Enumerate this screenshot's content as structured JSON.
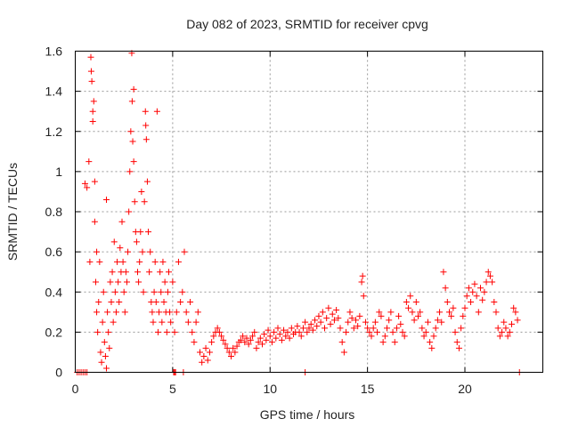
{
  "chart_data": {
    "type": "scatter",
    "title": "Day 082 of 2023, SRMTID for receiver cpvg",
    "xlabel": "GPS time / hours",
    "ylabel": "SRMTID / TECUs",
    "xlim": [
      0,
      24
    ],
    "ylim": [
      0,
      1.6
    ],
    "xticks": [
      0,
      5,
      10,
      15,
      20
    ],
    "yticks": [
      0,
      0.2,
      0.4,
      0.6,
      0.8,
      1,
      1.2,
      1.4,
      1.6
    ],
    "xtick_labels": [
      "0",
      "5",
      "10",
      "15",
      "20"
    ],
    "ytick_labels": [
      "0",
      "0.2",
      "0.4",
      "0.6",
      "0.8",
      "1",
      "1.2",
      "1.4",
      "1.6"
    ],
    "grid": true,
    "marker": "plus",
    "color": "#ff0000",
    "series": [
      {
        "name": "SRMTID",
        "points": [
          [
            0.1,
            0
          ],
          [
            0.2,
            0
          ],
          [
            0.3,
            0
          ],
          [
            0.4,
            0
          ],
          [
            0.5,
            0
          ],
          [
            0.6,
            0
          ],
          [
            0.5,
            0.94
          ],
          [
            0.6,
            0.92
          ],
          [
            0.7,
            1.05
          ],
          [
            0.75,
            0.55
          ],
          [
            0.8,
            1.57
          ],
          [
            0.82,
            1.5
          ],
          [
            0.85,
            1.45
          ],
          [
            0.9,
            1.3
          ],
          [
            0.9,
            1.25
          ],
          [
            0.95,
            1.35
          ],
          [
            1.0,
            0.95
          ],
          [
            1.0,
            0.75
          ],
          [
            1.05,
            0.45
          ],
          [
            1.1,
            0.6
          ],
          [
            1.1,
            0.3
          ],
          [
            1.15,
            0.2
          ],
          [
            1.2,
            0.35
          ],
          [
            1.25,
            0.55
          ],
          [
            1.3,
            0.1
          ],
          [
            1.35,
            0.05
          ],
          [
            1.4,
            0.25
          ],
          [
            1.45,
            0.4
          ],
          [
            1.5,
            0.15
          ],
          [
            1.55,
            0.08
          ],
          [
            1.6,
            0.86
          ],
          [
            1.6,
            0.02
          ],
          [
            1.65,
            0.3
          ],
          [
            1.7,
            0.2
          ],
          [
            1.75,
            0.12
          ],
          [
            1.8,
            0.45
          ],
          [
            1.85,
            0.35
          ],
          [
            1.9,
            0.5
          ],
          [
            1.95,
            0.25
          ],
          [
            2.0,
            0.65
          ],
          [
            2.05,
            0.4
          ],
          [
            2.1,
            0.3
          ],
          [
            2.15,
            0.55
          ],
          [
            2.2,
            0.45
          ],
          [
            2.25,
            0.35
          ],
          [
            2.3,
            0.62
          ],
          [
            2.35,
            0.5
          ],
          [
            2.4,
            0.75
          ],
          [
            2.45,
            0.55
          ],
          [
            2.5,
            0.4
          ],
          [
            2.55,
            0.3
          ],
          [
            2.6,
            0.5
          ],
          [
            2.65,
            0.45
          ],
          [
            2.7,
            0.6
          ],
          [
            2.75,
            0.8
          ],
          [
            2.8,
            1.0
          ],
          [
            2.85,
            1.2
          ],
          [
            2.9,
            1.59
          ],
          [
            2.92,
            1.35
          ],
          [
            2.95,
            1.15
          ],
          [
            3.0,
            1.41
          ],
          [
            3.0,
            1.05
          ],
          [
            3.05,
            0.85
          ],
          [
            3.1,
            0.7
          ],
          [
            3.15,
            0.65
          ],
          [
            3.2,
            0.5
          ],
          [
            3.25,
            0.45
          ],
          [
            3.3,
            0.55
          ],
          [
            3.35,
            0.7
          ],
          [
            3.4,
            0.9
          ],
          [
            3.45,
            0.6
          ],
          [
            3.5,
            0.4
          ],
          [
            3.55,
            0.85
          ],
          [
            3.6,
            1.3
          ],
          [
            3.62,
            1.23
          ],
          [
            3.65,
            1.16
          ],
          [
            3.7,
            0.95
          ],
          [
            3.75,
            0.7
          ],
          [
            3.8,
            0.5
          ],
          [
            3.85,
            0.6
          ],
          [
            3.9,
            0.35
          ],
          [
            3.95,
            0.3
          ],
          [
            4.0,
            0.25
          ],
          [
            4.05,
            0.4
          ],
          [
            4.1,
            0.55
          ],
          [
            4.15,
            0.35
          ],
          [
            4.2,
            1.3
          ],
          [
            4.25,
            0.2
          ],
          [
            4.3,
            0.3
          ],
          [
            4.35,
            0.5
          ],
          [
            4.4,
            0.4
          ],
          [
            4.45,
            0.25
          ],
          [
            4.5,
            0.55
          ],
          [
            4.55,
            0.35
          ],
          [
            4.6,
            0.45
          ],
          [
            4.65,
            0.3
          ],
          [
            4.7,
            0.2
          ],
          [
            4.75,
            0.4
          ],
          [
            4.8,
            0.5
          ],
          [
            4.85,
            0.3
          ],
          [
            4.9,
            0.25
          ],
          [
            5.0,
            0.45
          ],
          [
            5.1,
            0.2
          ],
          [
            5.2,
            0.3
          ],
          [
            5.3,
            0.55
          ],
          [
            5.4,
            0.35
          ],
          [
            5.5,
            0.4
          ],
          [
            5.6,
            0.6
          ],
          [
            5.7,
            0.3
          ],
          [
            5.8,
            0.25
          ],
          [
            5.9,
            0.35
          ],
          [
            6.0,
            0.2
          ],
          [
            6.1,
            0.15
          ],
          [
            6.2,
            0.25
          ],
          [
            6.3,
            0.3
          ],
          [
            6.4,
            0.1
          ],
          [
            6.5,
            0.05
          ],
          [
            6.6,
            0.08
          ],
          [
            6.7,
            0.12
          ],
          [
            6.8,
            0.06
          ],
          [
            6.9,
            0.1
          ],
          [
            7.0,
            0.15
          ],
          [
            7.1,
            0.18
          ],
          [
            7.2,
            0.2
          ],
          [
            7.3,
            0.22
          ],
          [
            7.4,
            0.2
          ],
          [
            7.5,
            0.18
          ],
          [
            7.6,
            0.16
          ],
          [
            7.7,
            0.14
          ],
          [
            7.8,
            0.12
          ],
          [
            7.9,
            0.1
          ],
          [
            8.0,
            0.08
          ],
          [
            8.1,
            0.12
          ],
          [
            8.2,
            0.1
          ],
          [
            8.3,
            0.13
          ],
          [
            8.4,
            0.15
          ],
          [
            8.5,
            0.16
          ],
          [
            8.6,
            0.18
          ],
          [
            8.7,
            0.15
          ],
          [
            8.8,
            0.17
          ],
          [
            8.9,
            0.14
          ],
          [
            9.0,
            0.16
          ],
          [
            9.1,
            0.18
          ],
          [
            9.2,
            0.2
          ],
          [
            9.3,
            0.12
          ],
          [
            9.4,
            0.15
          ],
          [
            9.5,
            0.17
          ],
          [
            9.6,
            0.14
          ],
          [
            9.7,
            0.19
          ],
          [
            9.8,
            0.16
          ],
          [
            9.9,
            0.21
          ],
          [
            10.0,
            0.18
          ],
          [
            10.1,
            0.15
          ],
          [
            10.2,
            0.2
          ],
          [
            10.3,
            0.17
          ],
          [
            10.4,
            0.22
          ],
          [
            10.5,
            0.19
          ],
          [
            10.6,
            0.16
          ],
          [
            10.7,
            0.21
          ],
          [
            10.8,
            0.18
          ],
          [
            10.9,
            0.2
          ],
          [
            11.0,
            0.17
          ],
          [
            11.1,
            0.22
          ],
          [
            11.2,
            0.19
          ],
          [
            11.3,
            0.2
          ],
          [
            11.4,
            0.23
          ],
          [
            11.5,
            0.2
          ],
          [
            11.6,
            0.18
          ],
          [
            11.7,
            0.22
          ],
          [
            11.8,
            0.25
          ],
          [
            11.9,
            0.2
          ],
          [
            12.0,
            0.22
          ],
          [
            12.1,
            0.24
          ],
          [
            12.2,
            0.21
          ],
          [
            12.3,
            0.26
          ],
          [
            12.4,
            0.23
          ],
          [
            12.5,
            0.28
          ],
          [
            12.6,
            0.25
          ],
          [
            12.7,
            0.3
          ],
          [
            12.8,
            0.22
          ],
          [
            12.9,
            0.27
          ],
          [
            13.0,
            0.32
          ],
          [
            13.1,
            0.24
          ],
          [
            13.2,
            0.29
          ],
          [
            13.3,
            0.26
          ],
          [
            13.4,
            0.31
          ],
          [
            13.5,
            0.27
          ],
          [
            13.6,
            0.22
          ],
          [
            13.7,
            0.15
          ],
          [
            13.8,
            0.1
          ],
          [
            13.9,
            0.2
          ],
          [
            14.0,
            0.25
          ],
          [
            14.1,
            0.3
          ],
          [
            14.2,
            0.27
          ],
          [
            14.3,
            0.22
          ],
          [
            14.4,
            0.26
          ],
          [
            14.5,
            0.23
          ],
          [
            14.6,
            0.28
          ],
          [
            14.7,
            0.45
          ],
          [
            14.75,
            0.48
          ],
          [
            14.8,
            0.38
          ],
          [
            14.9,
            0.25
          ],
          [
            15.0,
            0.22
          ],
          [
            15.1,
            0.2
          ],
          [
            15.2,
            0.18
          ],
          [
            15.3,
            0.22
          ],
          [
            15.4,
            0.25
          ],
          [
            15.5,
            0.2
          ],
          [
            15.6,
            0.3
          ],
          [
            15.7,
            0.28
          ],
          [
            15.8,
            0.15
          ],
          [
            15.9,
            0.18
          ],
          [
            16.0,
            0.22
          ],
          [
            16.1,
            0.26
          ],
          [
            16.2,
            0.3
          ],
          [
            16.3,
            0.2
          ],
          [
            16.4,
            0.15
          ],
          [
            16.5,
            0.22
          ],
          [
            16.6,
            0.28
          ],
          [
            16.7,
            0.24
          ],
          [
            16.8,
            0.2
          ],
          [
            16.9,
            0.18
          ],
          [
            17.0,
            0.35
          ],
          [
            17.1,
            0.32
          ],
          [
            17.2,
            0.38
          ],
          [
            17.3,
            0.3
          ],
          [
            17.4,
            0.26
          ],
          [
            17.5,
            0.35
          ],
          [
            17.6,
            0.28
          ],
          [
            17.7,
            0.3
          ],
          [
            17.8,
            0.22
          ],
          [
            17.9,
            0.18
          ],
          [
            18.0,
            0.2
          ],
          [
            18.1,
            0.25
          ],
          [
            18.2,
            0.15
          ],
          [
            18.3,
            0.12
          ],
          [
            18.4,
            0.18
          ],
          [
            18.5,
            0.22
          ],
          [
            18.6,
            0.26
          ],
          [
            18.7,
            0.3
          ],
          [
            18.8,
            0.25
          ],
          [
            18.9,
            0.5
          ],
          [
            19.0,
            0.42
          ],
          [
            19.1,
            0.35
          ],
          [
            19.2,
            0.3
          ],
          [
            19.3,
            0.28
          ],
          [
            19.4,
            0.32
          ],
          [
            19.5,
            0.2
          ],
          [
            19.6,
            0.15
          ],
          [
            19.7,
            0.12
          ],
          [
            19.8,
            0.22
          ],
          [
            19.9,
            0.28
          ],
          [
            20.0,
            0.32
          ],
          [
            20.1,
            0.38
          ],
          [
            20.2,
            0.42
          ],
          [
            20.3,
            0.35
          ],
          [
            20.4,
            0.4
          ],
          [
            20.5,
            0.44
          ],
          [
            20.6,
            0.38
          ],
          [
            20.7,
            0.3
          ],
          [
            20.8,
            0.42
          ],
          [
            20.9,
            0.36
          ],
          [
            21.0,
            0.4
          ],
          [
            21.1,
            0.45
          ],
          [
            21.2,
            0.5
          ],
          [
            21.3,
            0.48
          ],
          [
            21.4,
            0.45
          ],
          [
            21.5,
            0.35
          ],
          [
            21.6,
            0.3
          ],
          [
            21.7,
            0.22
          ],
          [
            21.8,
            0.18
          ],
          [
            21.9,
            0.2
          ],
          [
            22.0,
            0.25
          ],
          [
            22.1,
            0.22
          ],
          [
            22.2,
            0.18
          ],
          [
            22.3,
            0.2
          ],
          [
            22.4,
            0.24
          ],
          [
            22.5,
            0.32
          ],
          [
            22.6,
            0.3
          ],
          [
            22.7,
            0.26
          ],
          [
            5.05,
            0
          ],
          [
            5.1,
            0
          ],
          [
            5.15,
            0
          ],
          [
            5.55,
            0
          ],
          [
            11.8,
            0
          ],
          [
            22.8,
            0
          ]
        ]
      }
    ]
  }
}
